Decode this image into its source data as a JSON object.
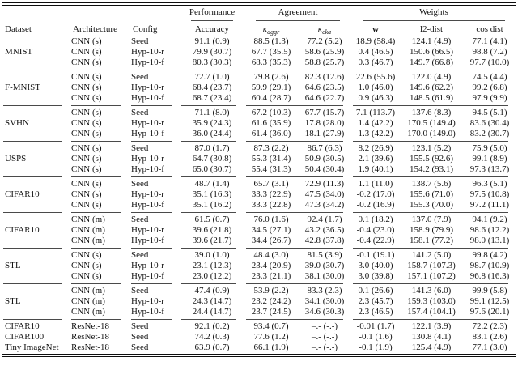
{
  "table": {
    "header": {
      "performance": "Performance",
      "agreement": "Agreement",
      "weights": "Weights",
      "dataset": "Dataset",
      "architecture": "Architecture",
      "config": "Config",
      "accuracy": "Accuracy",
      "kappa_aggr": {
        "symbol": "κ",
        "sub": "aggr"
      },
      "kappa_cka": {
        "symbol": "κ",
        "sub": "cka"
      },
      "w": "w",
      "l2_dist": "l2-dist",
      "cos_dist": "cos dist"
    },
    "groups": [
      {
        "dataset": "MNIST",
        "rows": [
          {
            "architecture": "CNN (s)",
            "config": "Seed",
            "accuracy": "91.1 (0.9)",
            "kappa_aggr": "88.5 (1.3)",
            "kappa_cka": "77.2 (5.2)",
            "w": "18.9 (58.4)",
            "l2_dist": "124.1 (4.9)",
            "cos_dist": "77.1 (4.1)"
          },
          {
            "architecture": "CNN (s)",
            "config": "Hyp-10-r",
            "accuracy": "79.9 (30.7)",
            "kappa_aggr": "67.7 (35.5)",
            "kappa_cka": "58.6 (25.9)",
            "w": "0.4 (46.5)",
            "l2_dist": "150.6 (66.5)",
            "cos_dist": "98.8 (7.2)"
          },
          {
            "architecture": "CNN (s)",
            "config": "Hyp-10-f",
            "accuracy": "80.3 (30.3)",
            "kappa_aggr": "68.3 (35.3)",
            "kappa_cka": "58.8 (25.7)",
            "w": "0.3 (46.7)",
            "l2_dist": "149.7 (66.8)",
            "cos_dist": "97.7 (10.0)"
          }
        ]
      },
      {
        "dataset": "F-MNIST",
        "rows": [
          {
            "architecture": "CNN (s)",
            "config": "Seed",
            "accuracy": "72.7 (1.0)",
            "kappa_aggr": "79.8 (2.6)",
            "kappa_cka": "82.3 (12.6)",
            "w": "22.6 (55.6)",
            "l2_dist": "122.0 (4.9)",
            "cos_dist": "74.5 (4.4)"
          },
          {
            "architecture": "CNN (s)",
            "config": "Hyp-10-r",
            "accuracy": "68.4 (23.7)",
            "kappa_aggr": "59.9 (29.1)",
            "kappa_cka": "64.6 (23.5)",
            "w": "1.0 (46.0)",
            "l2_dist": "149.6 (62.2)",
            "cos_dist": "99.2 (6.8)"
          },
          {
            "architecture": "CNN (s)",
            "config": "Hyp-10-f",
            "accuracy": "68.7 (23.4)",
            "kappa_aggr": "60.4 (28.7)",
            "kappa_cka": "64.6 (22.7)",
            "w": "0.9 (46.3)",
            "l2_dist": "148.5 (61.9)",
            "cos_dist": "97.9 (9.9)"
          }
        ]
      },
      {
        "dataset": "SVHN",
        "rows": [
          {
            "architecture": "CNN (s)",
            "config": "Seed",
            "accuracy": "71.1 (8.0)",
            "kappa_aggr": "67.2 (10.3)",
            "kappa_cka": "67.7 (15.7)",
            "w": "7.1 (113.7)",
            "l2_dist": "137.6 (8.3)",
            "cos_dist": "94.5 (5.1)"
          },
          {
            "architecture": "CNN (s)",
            "config": "Hyp-10-r",
            "accuracy": "35.9 (24.3)",
            "kappa_aggr": "61.6 (35.9)",
            "kappa_cka": "17.8 (28.0)",
            "w": "1.4 (42.2)",
            "l2_dist": "170.5 (149.4)",
            "cos_dist": "83.6 (30.4)"
          },
          {
            "architecture": "CNN (s)",
            "config": "Hyp-10-f",
            "accuracy": "36.0 (24.4)",
            "kappa_aggr": "61.4 (36.0)",
            "kappa_cka": "18.1 (27.9)",
            "w": "1.3 (42.2)",
            "l2_dist": "170.0 (149.0)",
            "cos_dist": "83.2 (30.7)"
          }
        ]
      },
      {
        "dataset": "USPS",
        "rows": [
          {
            "architecture": "CNN (s)",
            "config": "Seed",
            "accuracy": "87.0 (1.7)",
            "kappa_aggr": "87.3 (2.2)",
            "kappa_cka": "86.7 (6.3)",
            "w": "8.2 (26.9)",
            "l2_dist": "123.1 (5.2)",
            "cos_dist": "75.9 (5.0)"
          },
          {
            "architecture": "CNN (s)",
            "config": "Hyp-10-r",
            "accuracy": "64.7 (30.8)",
            "kappa_aggr": "55.3 (31.4)",
            "kappa_cka": "50.9 (30.5)",
            "w": "2.1 (39.6)",
            "l2_dist": "155.5 (92.6)",
            "cos_dist": "99.1 (8.9)"
          },
          {
            "architecture": "CNN (s)",
            "config": "Hyp-10-f",
            "accuracy": "65.0 (30.7)",
            "kappa_aggr": "55.4 (31.3)",
            "kappa_cka": "50.4 (30.4)",
            "w": "1.9 (40.1)",
            "l2_dist": "154.2 (93.1)",
            "cos_dist": "97.3 (13.7)"
          }
        ]
      },
      {
        "dataset": "CIFAR10",
        "rows": [
          {
            "architecture": "CNN (s)",
            "config": "Seed",
            "accuracy": "48.7 (1.4)",
            "kappa_aggr": "65.7 (3.1)",
            "kappa_cka": "72.9 (11.3)",
            "w": "1.1 (11.0)",
            "l2_dist": "138.7 (5.6)",
            "cos_dist": "96.3 (5.1)"
          },
          {
            "architecture": "CNN (s)",
            "config": "Hyp-10-r",
            "accuracy": "35.1 (16.3)",
            "kappa_aggr": "33.3 (22.9)",
            "kappa_cka": "47.5 (34.0)",
            "w": "-0.2 (17.0)",
            "l2_dist": "155.6 (71.0)",
            "cos_dist": "97.5 (10.8)"
          },
          {
            "architecture": "CNN (s)",
            "config": "Hyp-10-f",
            "accuracy": "35.1 (16.2)",
            "kappa_aggr": "33.3 (22.8)",
            "kappa_cka": "47.3 (34.2)",
            "w": "-0.2 (16.9)",
            "l2_dist": "155.3 (70.0)",
            "cos_dist": "97.2 (11.1)"
          }
        ]
      },
      {
        "dataset": "CIFAR10",
        "rows": [
          {
            "architecture": "CNN (m)",
            "config": "Seed",
            "accuracy": "61.5 (0.7)",
            "kappa_aggr": "76.0 (1.6)",
            "kappa_cka": "92.4 (1.7)",
            "w": "0.1 (18.2)",
            "l2_dist": "137.0 (7.9)",
            "cos_dist": "94.1 (9.2)"
          },
          {
            "architecture": "CNN (m)",
            "config": "Hyp-10-r",
            "accuracy": "39.6 (21.8)",
            "kappa_aggr": "34.5 (27.1)",
            "kappa_cka": "43.2 (36.5)",
            "w": "-0.4 (23.0)",
            "l2_dist": "158.9 (79.9)",
            "cos_dist": "98.6 (12.2)"
          },
          {
            "architecture": "CNN (m)",
            "config": "Hyp-10-f",
            "accuracy": "39.6 (21.7)",
            "kappa_aggr": "34.4 (26.7)",
            "kappa_cka": "42.8 (37.8)",
            "w": "-0.4 (22.9)",
            "l2_dist": "158.1 (77.2)",
            "cos_dist": "98.0 (13.1)"
          }
        ]
      },
      {
        "dataset": "STL",
        "rows": [
          {
            "architecture": "CNN (s)",
            "config": "Seed",
            "accuracy": "39.0 (1.0)",
            "kappa_aggr": "48.4 (3.0)",
            "kappa_cka": "81.5 (3.9)",
            "w": "-0.1 (19.1)",
            "l2_dist": "141.2 (5.0)",
            "cos_dist": "99.8 (4.2)"
          },
          {
            "architecture": "CNN (s)",
            "config": "Hyp-10-r",
            "accuracy": "23.1 (12.3)",
            "kappa_aggr": "23.4 (20.9)",
            "kappa_cka": "39.0 (30.7)",
            "w": "3.0 (40.0)",
            "l2_dist": "158.7 (107.3)",
            "cos_dist": "98.7 (10.9)"
          },
          {
            "architecture": "CNN (s)",
            "config": "Hyp-10-f",
            "accuracy": "23.0 (12.2)",
            "kappa_aggr": "23.3 (21.1)",
            "kappa_cka": "38.1 (30.0)",
            "w": "3.0 (39.8)",
            "l2_dist": "157.1 (107.2)",
            "cos_dist": "96.8 (16.3)"
          }
        ]
      },
      {
        "dataset": "STL",
        "rows": [
          {
            "architecture": "CNN (m)",
            "config": "Seed",
            "accuracy": "47.4 (0.9)",
            "kappa_aggr": "53.9 (2.2)",
            "kappa_cka": "83.3 (2.3)",
            "w": "0.1 (26.6)",
            "l2_dist": "141.3 (6.0)",
            "cos_dist": "99.9 (5.8)"
          },
          {
            "architecture": "CNN (m)",
            "config": "Hyp-10-r",
            "accuracy": "24.3 (14.7)",
            "kappa_aggr": "23.2 (24.2)",
            "kappa_cka": "34.1 (30.0)",
            "w": "2.3 (45.7)",
            "l2_dist": "159.3 (103.0)",
            "cos_dist": "99.1 (12.5)"
          },
          {
            "architecture": "CNN (m)",
            "config": "Hyp-10-f",
            "accuracy": "24.4 (14.7)",
            "kappa_aggr": "23.7 (24.5)",
            "kappa_cka": "34.6 (30.3)",
            "w": "2.3 (46.5)",
            "l2_dist": "157.4 (104.1)",
            "cos_dist": "97.6 (20.1)"
          }
        ]
      },
      {
        "dataset": null,
        "rows": [
          {
            "dataset": "CIFAR10",
            "architecture": "ResNet-18",
            "config": "Seed",
            "accuracy": "92.1 (0.2)",
            "kappa_aggr": "93.4 (0.7)",
            "kappa_cka": "–.- (-.-)",
            "w": "-0.01 (1.7)",
            "l2_dist": "122.1 (3.9)",
            "cos_dist": "72.2 (2.3)"
          },
          {
            "dataset": "CIFAR100",
            "architecture": "ResNet-18",
            "config": "Seed",
            "accuracy": "74.2 (0.3)",
            "kappa_aggr": "77.6 (1.2)",
            "kappa_cka": "–.- (-.-)",
            "w": "-0.1 (1.6)",
            "l2_dist": "130.8 (4.1)",
            "cos_dist": "83.1 (2.6)"
          },
          {
            "dataset": "Tiny ImageNet",
            "architecture": "ResNet-18",
            "config": "Seed",
            "accuracy": "63.9 (0.7)",
            "kappa_aggr": "66.1 (1.9)",
            "kappa_cka": "–.- (-.-)",
            "w": "-0.1 (1.9)",
            "l2_dist": "125.4 (4.9)",
            "cos_dist": "77.1 (3.0)"
          }
        ]
      }
    ]
  }
}
